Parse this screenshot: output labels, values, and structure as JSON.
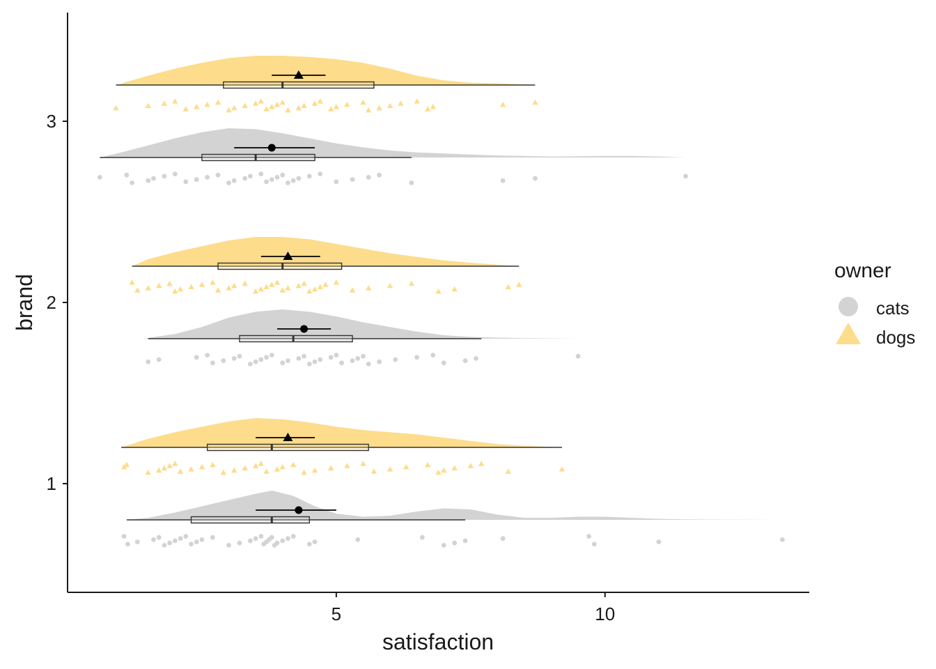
{
  "chart_data": {
    "type": "raincloud",
    "xlabel": "satisfaction",
    "ylabel": "brand",
    "xlim": [
      0,
      13.8
    ],
    "ylim": [
      0.4,
      3.6
    ],
    "x_ticks": [
      5,
      10
    ],
    "y_ticks": [
      1,
      2,
      3
    ],
    "legend": {
      "title": "owner",
      "position": "right",
      "entries": [
        {
          "label": "cats",
          "shape": "circle",
          "color": "#d3d3d3"
        },
        {
          "label": "dogs",
          "shape": "triangle",
          "color": "#fddc8b"
        }
      ]
    },
    "colors": {
      "cats": "#d3d3d3",
      "dogs": "#fddc8b",
      "summary": "#000000",
      "box_line": "#333333"
    },
    "groups": [
      {
        "brand": 1,
        "owner": "cats",
        "density": [
          [
            1.1,
            0.0
          ],
          [
            1.5,
            0.002
          ],
          [
            2,
            0.007
          ],
          [
            2.5,
            0.013
          ],
          [
            3,
            0.019
          ],
          [
            3.5,
            0.025
          ],
          [
            3.8,
            0.028
          ],
          [
            4.2,
            0.023
          ],
          [
            4.6,
            0.013
          ],
          [
            5,
            0.006
          ],
          [
            5.5,
            0.003
          ],
          [
            6,
            0.004
          ],
          [
            6.5,
            0.008
          ],
          [
            7,
            0.011
          ],
          [
            7.5,
            0.01
          ],
          [
            8,
            0.005
          ],
          [
            8.5,
            0.002
          ],
          [
            9,
            0.002
          ],
          [
            9.5,
            0.003
          ],
          [
            10,
            0.003
          ],
          [
            10.5,
            0.002
          ],
          [
            11,
            0.001
          ],
          [
            11.5,
            0.0005
          ],
          [
            12.5,
            0.0002
          ],
          [
            13.3,
            0.0
          ]
        ],
        "box": {
          "min": 1.1,
          "q1": 2.3,
          "median": 3.8,
          "q3": 4.5,
          "max": 7.4
        },
        "mean": 4.3,
        "ci": [
          3.5,
          5.0
        ],
        "points": [
          1.05,
          1.12,
          1.3,
          1.6,
          1.7,
          1.8,
          1.9,
          2.0,
          2.1,
          2.2,
          2.3,
          2.4,
          2.5,
          2.7,
          3.0,
          3.2,
          3.4,
          3.5,
          3.6,
          3.65,
          3.7,
          3.75,
          3.8,
          3.85,
          3.9,
          4.0,
          4.1,
          4.2,
          4.5,
          4.6,
          5.4,
          6.6,
          7.0,
          7.2,
          7.4,
          8.1,
          9.7,
          9.8,
          11.0,
          13.3
        ]
      },
      {
        "brand": 1,
        "owner": "dogs",
        "density": [
          [
            1.0,
            0.0
          ],
          [
            1.5,
            0.008
          ],
          [
            2,
            0.014
          ],
          [
            2.5,
            0.019
          ],
          [
            3,
            0.024
          ],
          [
            3.5,
            0.027
          ],
          [
            4,
            0.026
          ],
          [
            4.5,
            0.023
          ],
          [
            5,
            0.019
          ],
          [
            5.5,
            0.016
          ],
          [
            6,
            0.014
          ],
          [
            6.5,
            0.012
          ],
          [
            7,
            0.009
          ],
          [
            7.5,
            0.006
          ],
          [
            8,
            0.003
          ],
          [
            8.5,
            0.0015
          ],
          [
            9.2,
            0.0
          ]
        ],
        "box": {
          "min": 1.0,
          "q1": 2.6,
          "median": 3.8,
          "q3": 5.6,
          "max": 9.2
        },
        "mean": 4.1,
        "ci": [
          3.5,
          4.6
        ],
        "points": [
          1.05,
          1.1,
          1.5,
          1.7,
          1.8,
          1.9,
          2.0,
          2.1,
          2.3,
          2.5,
          2.7,
          2.9,
          3.1,
          3.3,
          3.5,
          3.6,
          3.7,
          3.9,
          4.0,
          4.2,
          4.4,
          4.6,
          4.9,
          5.2,
          5.5,
          5.7,
          6.0,
          6.3,
          6.7,
          6.9,
          7.0,
          7.2,
          7.5,
          7.7,
          8.2,
          9.2
        ]
      },
      {
        "brand": 2,
        "owner": "cats",
        "density": [
          [
            1.4,
            0.0
          ],
          [
            2,
            0.004
          ],
          [
            2.5,
            0.01
          ],
          [
            3,
            0.018
          ],
          [
            3.5,
            0.023
          ],
          [
            4,
            0.025
          ],
          [
            4.5,
            0.023
          ],
          [
            5,
            0.019
          ],
          [
            5.5,
            0.014
          ],
          [
            6,
            0.01
          ],
          [
            6.5,
            0.006
          ],
          [
            7,
            0.003
          ],
          [
            7.5,
            0.0015
          ],
          [
            8.5,
            0.0005
          ],
          [
            9.5,
            0.0
          ]
        ],
        "box": {
          "min": 1.5,
          "q1": 3.2,
          "median": 4.2,
          "q3": 5.3,
          "max": 7.7
        },
        "mean": 4.4,
        "ci": [
          3.9,
          4.9
        ],
        "points": [
          1.5,
          1.7,
          2.4,
          2.6,
          2.7,
          2.9,
          3.1,
          3.2,
          3.4,
          3.5,
          3.6,
          3.7,
          3.8,
          4.0,
          4.1,
          4.3,
          4.4,
          4.5,
          4.6,
          4.7,
          4.9,
          5.0,
          5.1,
          5.3,
          5.4,
          5.5,
          5.6,
          5.8,
          6.1,
          6.5,
          6.8,
          7.0,
          7.4,
          7.6,
          9.5
        ]
      },
      {
        "brand": 2,
        "owner": "dogs",
        "density": [
          [
            1.2,
            0.0
          ],
          [
            1.5,
            0.006
          ],
          [
            2,
            0.012
          ],
          [
            2.5,
            0.017
          ],
          [
            3,
            0.022
          ],
          [
            3.5,
            0.025
          ],
          [
            4,
            0.025
          ],
          [
            4.5,
            0.023
          ],
          [
            5,
            0.019
          ],
          [
            5.5,
            0.015
          ],
          [
            6,
            0.011
          ],
          [
            6.5,
            0.008
          ],
          [
            7,
            0.005
          ],
          [
            7.5,
            0.003
          ],
          [
            8.4,
            0.0
          ]
        ],
        "box": {
          "min": 1.2,
          "q1": 2.8,
          "median": 4.0,
          "q3": 5.1,
          "max": 8.4
        },
        "mean": 4.1,
        "ci": [
          3.6,
          4.7
        ],
        "points": [
          1.2,
          1.3,
          1.5,
          1.7,
          1.9,
          2.0,
          2.1,
          2.3,
          2.5,
          2.7,
          2.8,
          3.0,
          3.1,
          3.3,
          3.5,
          3.6,
          3.7,
          3.8,
          3.9,
          4.0,
          4.1,
          4.3,
          4.4,
          4.5,
          4.6,
          4.7,
          4.8,
          5.0,
          5.3,
          5.6,
          6.0,
          6.4,
          6.9,
          7.2,
          8.2,
          8.4
        ]
      },
      {
        "brand": 3,
        "owner": "cats",
        "density": [
          [
            0.6,
            0.0
          ],
          [
            1,
            0.005
          ],
          [
            1.5,
            0.012
          ],
          [
            2,
            0.019
          ],
          [
            2.5,
            0.025
          ],
          [
            3,
            0.029
          ],
          [
            3.5,
            0.028
          ],
          [
            4,
            0.024
          ],
          [
            4.5,
            0.019
          ],
          [
            5,
            0.014
          ],
          [
            5.5,
            0.01
          ],
          [
            6,
            0.007
          ],
          [
            6.5,
            0.005
          ],
          [
            7,
            0.004
          ],
          [
            7.5,
            0.003
          ],
          [
            8,
            0.002
          ],
          [
            8.5,
            0.0015
          ],
          [
            9,
            0.001
          ],
          [
            9.5,
            0.0012
          ],
          [
            10,
            0.0015
          ],
          [
            10.5,
            0.0015
          ],
          [
            11,
            0.001
          ],
          [
            11.5,
            0.0
          ]
        ],
        "box": {
          "min": 0.6,
          "q1": 2.5,
          "median": 3.5,
          "q3": 4.6,
          "max": 6.4
        },
        "mean": 3.8,
        "ci": [
          3.1,
          4.6
        ],
        "points": [
          0.6,
          1.1,
          1.2,
          1.5,
          1.6,
          1.8,
          2.0,
          2.2,
          2.4,
          2.6,
          2.8,
          3.0,
          3.1,
          3.3,
          3.4,
          3.6,
          3.7,
          3.8,
          3.9,
          4.0,
          4.1,
          4.2,
          4.3,
          4.5,
          4.7,
          5.0,
          5.3,
          5.6,
          5.8,
          6.4,
          8.1,
          8.7,
          11.5
        ]
      },
      {
        "brand": 3,
        "owner": "dogs",
        "density": [
          [
            0.9,
            0.0
          ],
          [
            1.5,
            0.008
          ],
          [
            2,
            0.014
          ],
          [
            2.5,
            0.019
          ],
          [
            3,
            0.023
          ],
          [
            3.5,
            0.025
          ],
          [
            4,
            0.025
          ],
          [
            4.5,
            0.024
          ],
          [
            5,
            0.022
          ],
          [
            5.5,
            0.019
          ],
          [
            6,
            0.014
          ],
          [
            6.5,
            0.008
          ],
          [
            7,
            0.004
          ],
          [
            7.5,
            0.002
          ],
          [
            8,
            0.0015
          ],
          [
            8.7,
            0.0
          ]
        ],
        "box": {
          "min": 0.9,
          "q1": 2.9,
          "median": 4.0,
          "q3": 5.7,
          "max": 8.7
        },
        "mean": 4.3,
        "ci": [
          3.8,
          4.8
        ],
        "points": [
          0.9,
          1.5,
          1.8,
          2.0,
          2.2,
          2.4,
          2.6,
          2.8,
          3.0,
          3.1,
          3.3,
          3.5,
          3.6,
          3.7,
          3.8,
          3.9,
          4.0,
          4.1,
          4.3,
          4.4,
          4.6,
          4.7,
          4.9,
          5.0,
          5.2,
          5.5,
          5.6,
          5.8,
          6.0,
          6.2,
          6.5,
          6.7,
          6.8,
          8.1,
          8.7
        ]
      }
    ]
  }
}
